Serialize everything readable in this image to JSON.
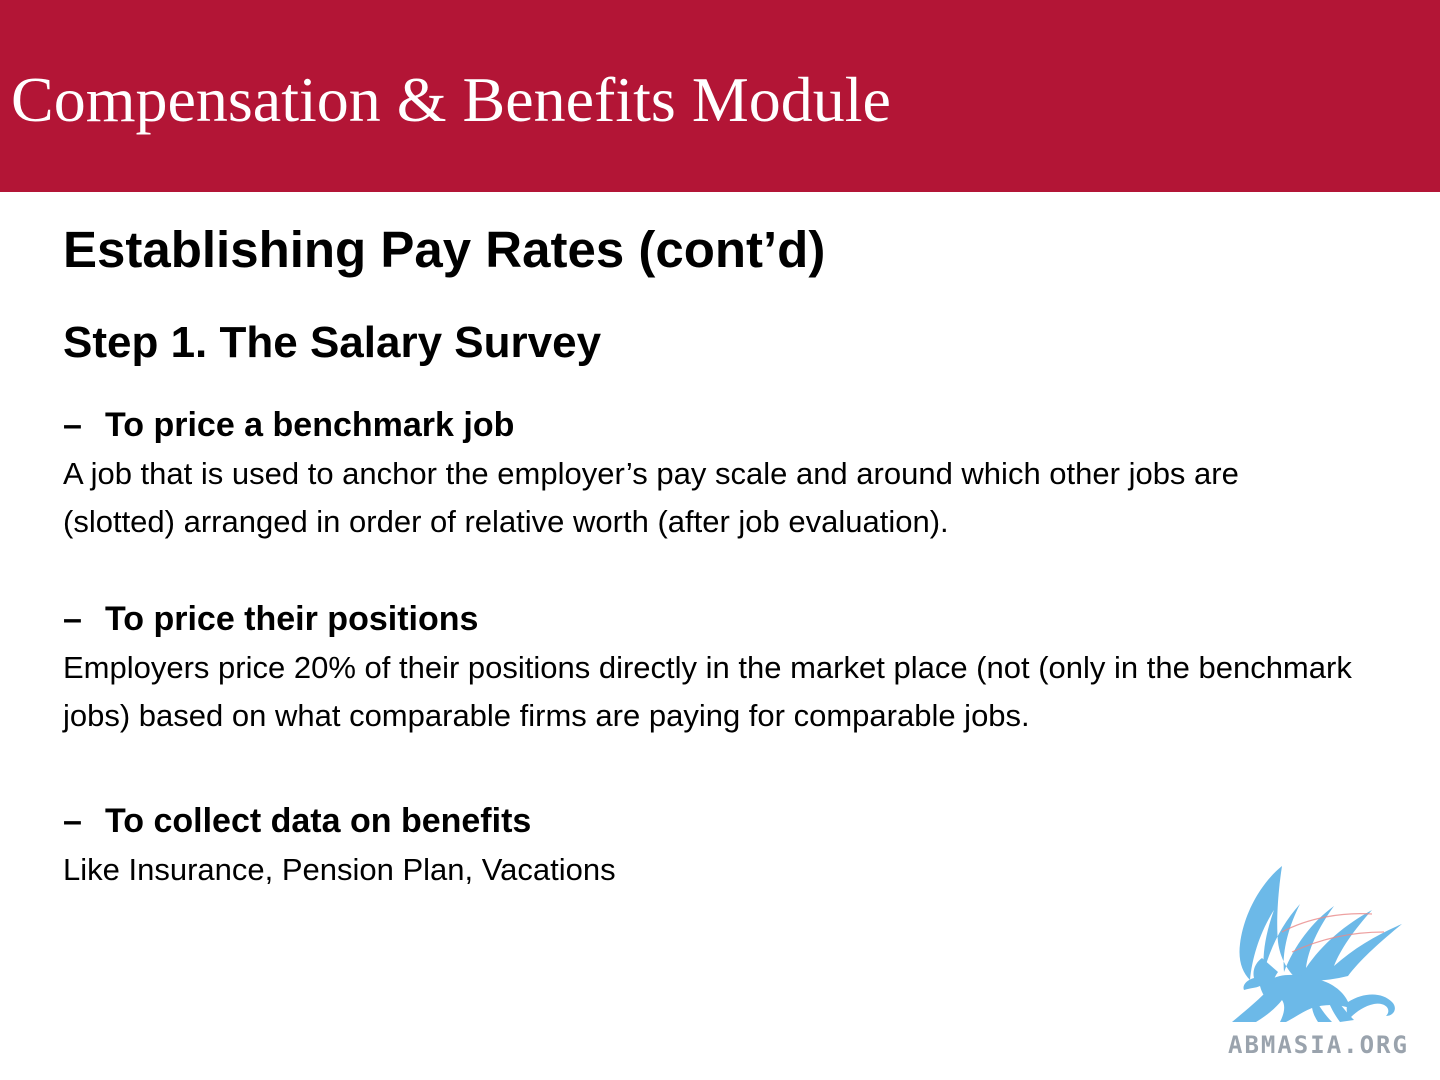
{
  "header": {
    "module_title": "Compensation & Benefits Module",
    "band_color": "#b31536"
  },
  "slide": {
    "title": "Establishing Pay Rates (cont’d)",
    "step_title": "Step 1. The Salary Survey",
    "sections": [
      {
        "dash": "–",
        "heading": "To price a benchmark job",
        "body": "A job that is used to anchor the employer’s pay scale and around which other jobs are (slotted) arranged in order of relative worth (after job evaluation)."
      },
      {
        "dash": "–",
        "heading": "To price their positions",
        "body": "Employers price 20% of their positions directly in the market place (not (only in the benchmark jobs) based on what comparable firms are paying for comparable jobs."
      },
      {
        "dash": "–",
        "heading": "To collect data on benefits",
        "body": "Like Insurance, Pension Plan, Vacations"
      }
    ]
  },
  "logo": {
    "icon": "griffin-icon",
    "text": "ABMASIA.ORG",
    "icon_color": "#6cb9e8"
  }
}
